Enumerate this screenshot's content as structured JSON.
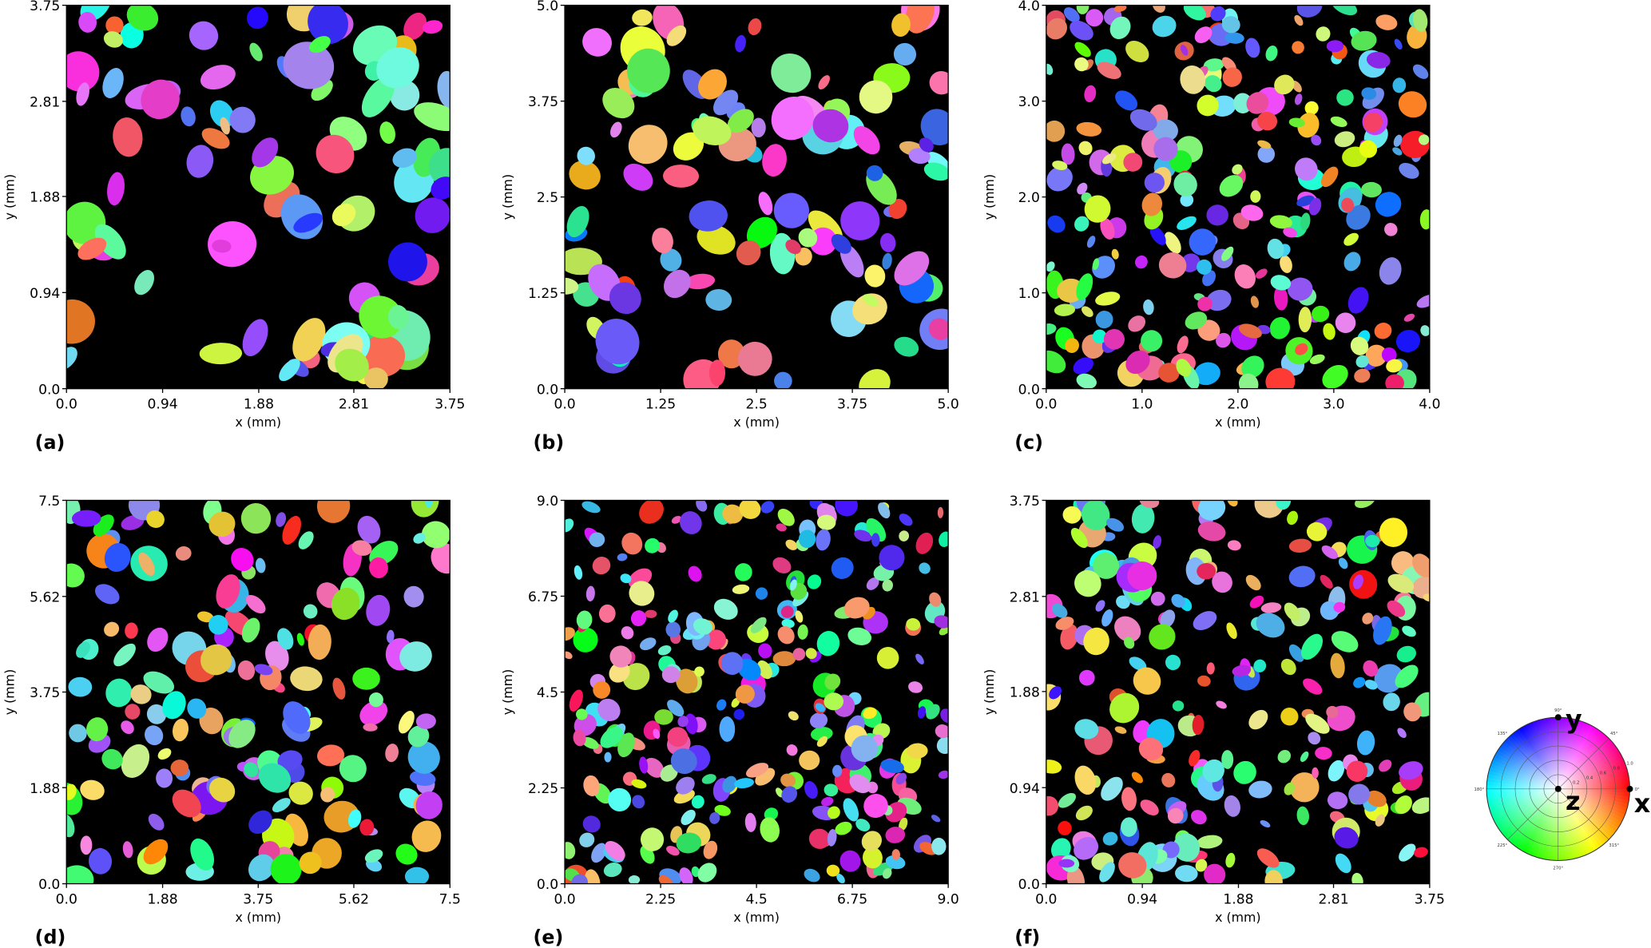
{
  "chart_data": [
    {
      "type": "image",
      "label": "(a)",
      "xlabel": "x (mm)",
      "ylabel": "y (mm)",
      "xlim": [
        0,
        3.75
      ],
      "ylim": [
        0,
        3.75
      ],
      "xticks": [
        {
          "value": 0,
          "label": "0.0"
        },
        0.94,
        1.88,
        2.81,
        3.75
      ],
      "yticks": [
        {
          "value": 0,
          "label": "0.0"
        },
        0.94,
        1.88,
        2.81,
        3.75
      ]
    },
    {
      "type": "image",
      "label": "(b)",
      "xlabel": "x (mm)",
      "ylabel": "y (mm)",
      "xlim": [
        0,
        5
      ],
      "ylim": [
        0,
        5
      ],
      "xticks": [
        {
          "value": 0,
          "label": "0.0"
        },
        1.25,
        2.5,
        3.75,
        {
          "value": 5,
          "label": "5.0"
        }
      ],
      "yticks": [
        {
          "value": 0,
          "label": "0.0"
        },
        1.25,
        2.5,
        3.75,
        {
          "value": 5,
          "label": "5.0"
        }
      ]
    },
    {
      "type": "image",
      "label": "(c)",
      "xlabel": "x (mm)",
      "ylabel": "y (mm)",
      "xlim": [
        0,
        4
      ],
      "ylim": [
        0,
        4
      ],
      "xticks": [
        {
          "value": 0,
          "label": "0.0"
        },
        {
          "value": 1,
          "label": "1.0"
        },
        {
          "value": 2,
          "label": "2.0"
        },
        {
          "value": 3,
          "label": "3.0"
        },
        {
          "value": 4,
          "label": "4.0"
        }
      ],
      "yticks": [
        {
          "value": 0,
          "label": "0.0"
        },
        {
          "value": 1,
          "label": "1.0"
        },
        {
          "value": 2,
          "label": "2.0"
        },
        {
          "value": 3,
          "label": "3.0"
        },
        {
          "value": 4,
          "label": "4.0"
        }
      ]
    },
    {
      "type": "image",
      "label": "(d)",
      "xlabel": "x (mm)",
      "ylabel": "y (mm)",
      "xlim": [
        0,
        7.5
      ],
      "ylim": [
        0,
        7.5
      ],
      "xticks": [
        {
          "value": 0,
          "label": "0.0"
        },
        1.88,
        3.75,
        5.62,
        7.5
      ],
      "yticks": [
        {
          "value": 0,
          "label": "0.0"
        },
        1.88,
        3.75,
        5.62,
        7.5
      ]
    },
    {
      "type": "image",
      "label": "(e)",
      "xlabel": "x (mm)",
      "ylabel": "y (mm)",
      "xlim": [
        0,
        9
      ],
      "ylim": [
        0,
        9
      ],
      "xticks": [
        {
          "value": 0,
          "label": "0.0"
        },
        2.25,
        4.5,
        6.75,
        {
          "value": 9,
          "label": "9.0"
        }
      ],
      "yticks": [
        {
          "value": 0,
          "label": "0.0"
        },
        2.25,
        4.5,
        6.75,
        {
          "value": 9,
          "label": "9.0"
        }
      ]
    },
    {
      "type": "image",
      "label": "(f)",
      "xlabel": "x (mm)",
      "ylabel": "y (mm)",
      "xlim": [
        0,
        3.75
      ],
      "ylim": [
        0,
        3.75
      ],
      "xticks": [
        {
          "value": 0,
          "label": "0.0"
        },
        0.94,
        1.88,
        2.81,
        3.75
      ],
      "yticks": [
        {
          "value": 0,
          "label": "0.0"
        },
        0.94,
        1.88,
        2.81,
        3.75
      ]
    }
  ],
  "legend": {
    "angles": [
      "90°",
      "45°",
      "0°",
      "315°",
      "270°",
      "225°",
      "180°",
      "135°"
    ],
    "radii": [
      "0.2",
      "0.4",
      "0.6",
      "0.8",
      "1.0"
    ],
    "axes": [
      "x",
      "y",
      "z"
    ]
  }
}
